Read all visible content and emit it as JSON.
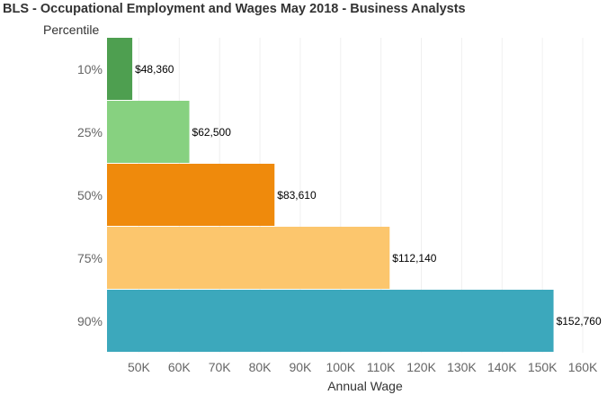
{
  "title": "BLS - Occupational Employment and Wages May 2018 - Business Analysts",
  "chart_data": {
    "type": "bar",
    "orientation": "horizontal",
    "y_axis_title": "Percentile",
    "x_axis_title": "Annual Wage",
    "categories": [
      "10%",
      "25%",
      "50%",
      "75%",
      "90%"
    ],
    "values": [
      48360,
      62500,
      83610,
      112140,
      152760
    ],
    "value_labels": [
      "$48,360",
      "$62,500",
      "$83,610",
      "$112,140",
      "$152,760"
    ],
    "colors": [
      "#4e9f50",
      "#87d180",
      "#ef8a0c",
      "#fcc66d",
      "#3ca8bc"
    ],
    "x_ticks": [
      50000,
      60000,
      70000,
      80000,
      90000,
      100000,
      110000,
      120000,
      130000,
      140000,
      150000,
      160000
    ],
    "x_tick_labels": [
      "50K",
      "60K",
      "70K",
      "80K",
      "90K",
      "100K",
      "110K",
      "120K",
      "130K",
      "140K",
      "150K",
      "160K"
    ],
    "xlim": [
      42100,
      164000
    ],
    "grid": "vertical",
    "legend": "none"
  }
}
